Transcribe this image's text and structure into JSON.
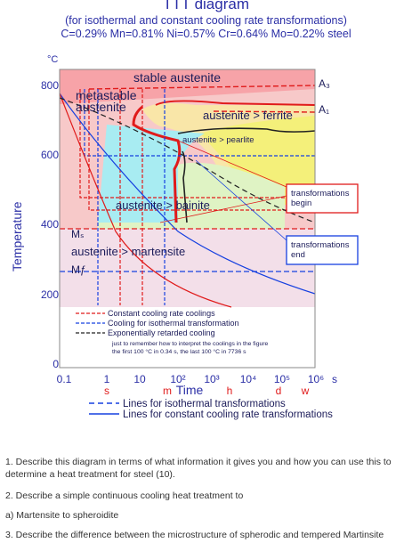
{
  "header": {
    "title": "TTT diagram",
    "subtitle": "(for isothermal and constant cooling rate transformations)",
    "composition": "C=0.29% Mn=0.81% Ni=0.57% Cr=0.64% Mo=0.22% steel"
  },
  "axes": {
    "y_unit": "°C",
    "y_title": "Temperature",
    "y_ticks": [
      "800",
      "600",
      "400",
      "200",
      "0"
    ],
    "x_unit": "s",
    "x_title": "Time",
    "x_ticks_top": [
      "0.1",
      "1",
      "10",
      "10²",
      "10³",
      "10⁴",
      "10⁵",
      "10⁶"
    ],
    "x_ticks_bottom": [
      "s",
      "m",
      "h",
      "d",
      "w"
    ]
  },
  "regions": {
    "stable_austenite": "stable austenite",
    "metastable_austenite": "metastable\naustenite",
    "ferrite": "austenite > ferrite",
    "pearlite": "austenite > pearlite",
    "bainite": "austenite > bainite",
    "martensite": "austenite > martensite"
  },
  "lines": {
    "a3": "A₃",
    "a1": "A₁",
    "ms": "Mₛ",
    "mf": "Mƒ"
  },
  "callouts": {
    "begin": "transformations\nbegin",
    "end": "transformations\nend"
  },
  "legend_inner": {
    "constant": "Constant cooling rate coolings",
    "isothermal": "Cooling for isothermal transformation",
    "exponential": "Exponentially retarded cooling",
    "note1": "just to remember how to interpret the coolings in the figure",
    "note2": "the first 100 °C in 0.34 s, the last 100 °C in 7736 s"
  },
  "legend_outer": {
    "iso": "Lines for isothermal transformations",
    "const": "Lines for constant cooling rate transformations"
  },
  "questions": {
    "q1": "1. Describe this diagram in terms of what information it gives you and how you can use this to determine a heat treatment for steel (10).",
    "q2": "2. Describe a simple continuous cooling heat treatment to",
    "q2a": "a) Martensite to spheroidite",
    "q3": "3. Describe the difference between the microstructure of spherodic and tempered Martinsite"
  },
  "colors": {
    "stable_austenite": "#f7a3a8",
    "metastable": "#f7c9c9",
    "ferrite": "#f9e6a8",
    "pearlite": "#f4f07a",
    "bainite": "#a8ecf2",
    "martensite": "#f3dfe9",
    "green_band": "#dff3c4",
    "text_blue": "#2b2fa6",
    "red": "#e01b1b",
    "blue": "#1640e0"
  }
}
